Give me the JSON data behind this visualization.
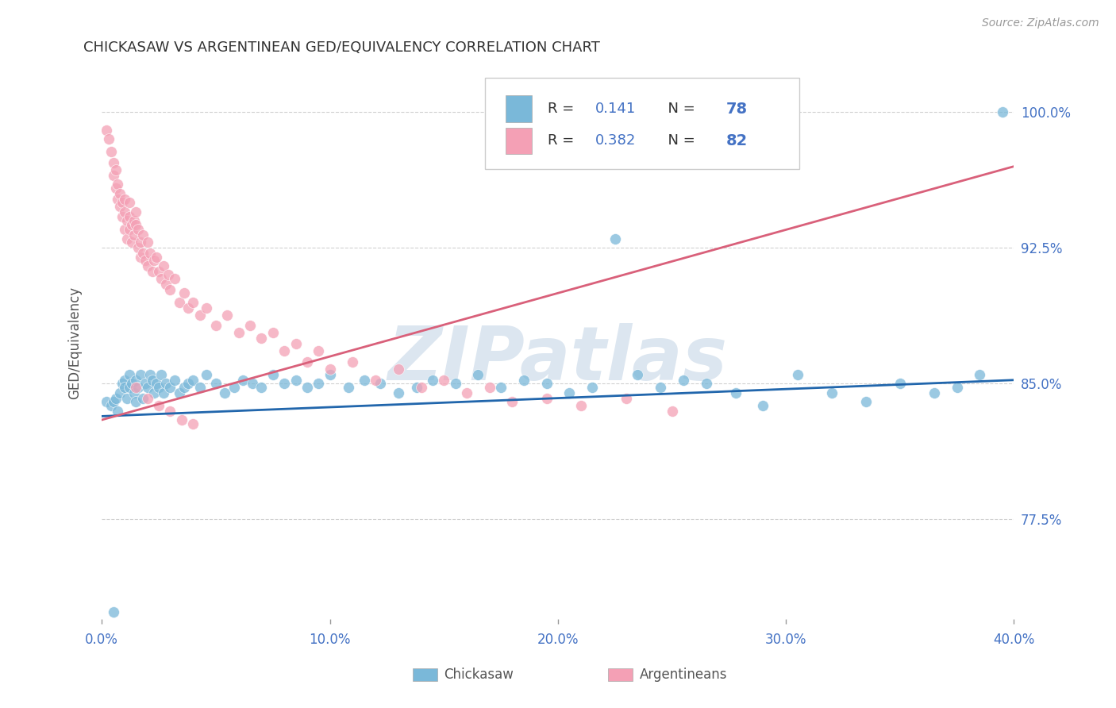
{
  "title": "CHICKASAW VS ARGENTINEAN GED/EQUIVALENCY CORRELATION CHART",
  "source": "Source: ZipAtlas.com",
  "ylabel_label": "GED/Equivalency",
  "xmin": 0.0,
  "xmax": 0.4,
  "ymin": 0.72,
  "ymax": 1.025,
  "yticks": [
    0.775,
    0.85,
    0.925,
    1.0
  ],
  "ytick_labels": [
    "77.5%",
    "85.0%",
    "92.5%",
    "100.0%"
  ],
  "xticks": [
    0.0,
    0.1,
    0.2,
    0.3,
    0.4
  ],
  "xtick_labels": [
    "0.0%",
    "10.0%",
    "20.0%",
    "30.0%",
    "40.0%"
  ],
  "chickasaw_R": 0.141,
  "chickasaw_N": 78,
  "argentinean_R": 0.382,
  "argentinean_N": 82,
  "chickasaw_color": "#7ab8d9",
  "argentinean_color": "#f4a0b5",
  "chickasaw_line_color": "#2166ac",
  "argentinean_line_color": "#d9607a",
  "watermark": "ZIPatlas",
  "watermark_color": "#dce6f0",
  "background_color": "#ffffff",
  "chickasaw_x": [
    0.002,
    0.004,
    0.005,
    0.006,
    0.007,
    0.008,
    0.009,
    0.01,
    0.01,
    0.011,
    0.012,
    0.012,
    0.013,
    0.014,
    0.015,
    0.015,
    0.016,
    0.017,
    0.018,
    0.019,
    0.02,
    0.021,
    0.022,
    0.023,
    0.024,
    0.025,
    0.026,
    0.027,
    0.028,
    0.03,
    0.032,
    0.034,
    0.036,
    0.038,
    0.04,
    0.043,
    0.046,
    0.05,
    0.054,
    0.058,
    0.062,
    0.066,
    0.07,
    0.075,
    0.08,
    0.085,
    0.09,
    0.095,
    0.1,
    0.108,
    0.115,
    0.122,
    0.13,
    0.138,
    0.145,
    0.155,
    0.165,
    0.175,
    0.185,
    0.195,
    0.205,
    0.215,
    0.225,
    0.235,
    0.245,
    0.255,
    0.265,
    0.278,
    0.29,
    0.305,
    0.32,
    0.335,
    0.35,
    0.365,
    0.375,
    0.385,
    0.005,
    0.395
  ],
  "chickasaw_y": [
    0.84,
    0.838,
    0.84,
    0.842,
    0.835,
    0.845,
    0.85,
    0.852,
    0.848,
    0.842,
    0.855,
    0.848,
    0.85,
    0.845,
    0.84,
    0.852,
    0.848,
    0.855,
    0.842,
    0.85,
    0.848,
    0.855,
    0.852,
    0.845,
    0.85,
    0.848,
    0.855,
    0.845,
    0.85,
    0.848,
    0.852,
    0.845,
    0.848,
    0.85,
    0.852,
    0.848,
    0.855,
    0.85,
    0.845,
    0.848,
    0.852,
    0.85,
    0.848,
    0.855,
    0.85,
    0.852,
    0.848,
    0.85,
    0.855,
    0.848,
    0.852,
    0.85,
    0.845,
    0.848,
    0.852,
    0.85,
    0.855,
    0.848,
    0.852,
    0.85,
    0.845,
    0.848,
    0.93,
    0.855,
    0.848,
    0.852,
    0.85,
    0.845,
    0.838,
    0.855,
    0.845,
    0.84,
    0.85,
    0.845,
    0.848,
    0.855,
    0.724,
    1.0
  ],
  "argentinean_x": [
    0.002,
    0.003,
    0.004,
    0.005,
    0.005,
    0.006,
    0.006,
    0.007,
    0.007,
    0.008,
    0.008,
    0.009,
    0.009,
    0.01,
    0.01,
    0.01,
    0.011,
    0.011,
    0.012,
    0.012,
    0.012,
    0.013,
    0.013,
    0.014,
    0.014,
    0.015,
    0.015,
    0.016,
    0.016,
    0.017,
    0.017,
    0.018,
    0.018,
    0.019,
    0.02,
    0.02,
    0.021,
    0.022,
    0.023,
    0.024,
    0.025,
    0.026,
    0.027,
    0.028,
    0.029,
    0.03,
    0.032,
    0.034,
    0.036,
    0.038,
    0.04,
    0.043,
    0.046,
    0.05,
    0.055,
    0.06,
    0.065,
    0.07,
    0.075,
    0.08,
    0.085,
    0.09,
    0.095,
    0.1,
    0.11,
    0.12,
    0.13,
    0.14,
    0.15,
    0.16,
    0.17,
    0.18,
    0.195,
    0.21,
    0.23,
    0.25,
    0.015,
    0.02,
    0.025,
    0.03,
    0.035,
    0.04
  ],
  "argentinean_y": [
    0.99,
    0.985,
    0.978,
    0.972,
    0.965,
    0.958,
    0.968,
    0.952,
    0.96,
    0.948,
    0.955,
    0.942,
    0.95,
    0.945,
    0.935,
    0.952,
    0.94,
    0.93,
    0.942,
    0.935,
    0.95,
    0.938,
    0.928,
    0.94,
    0.932,
    0.938,
    0.945,
    0.925,
    0.935,
    0.928,
    0.92,
    0.932,
    0.922,
    0.918,
    0.928,
    0.915,
    0.922,
    0.912,
    0.918,
    0.92,
    0.912,
    0.908,
    0.915,
    0.905,
    0.91,
    0.902,
    0.908,
    0.895,
    0.9,
    0.892,
    0.895,
    0.888,
    0.892,
    0.882,
    0.888,
    0.878,
    0.882,
    0.875,
    0.878,
    0.868,
    0.872,
    0.862,
    0.868,
    0.858,
    0.862,
    0.852,
    0.858,
    0.848,
    0.852,
    0.845,
    0.848,
    0.84,
    0.842,
    0.838,
    0.842,
    0.835,
    0.848,
    0.842,
    0.838,
    0.835,
    0.83,
    0.828
  ]
}
